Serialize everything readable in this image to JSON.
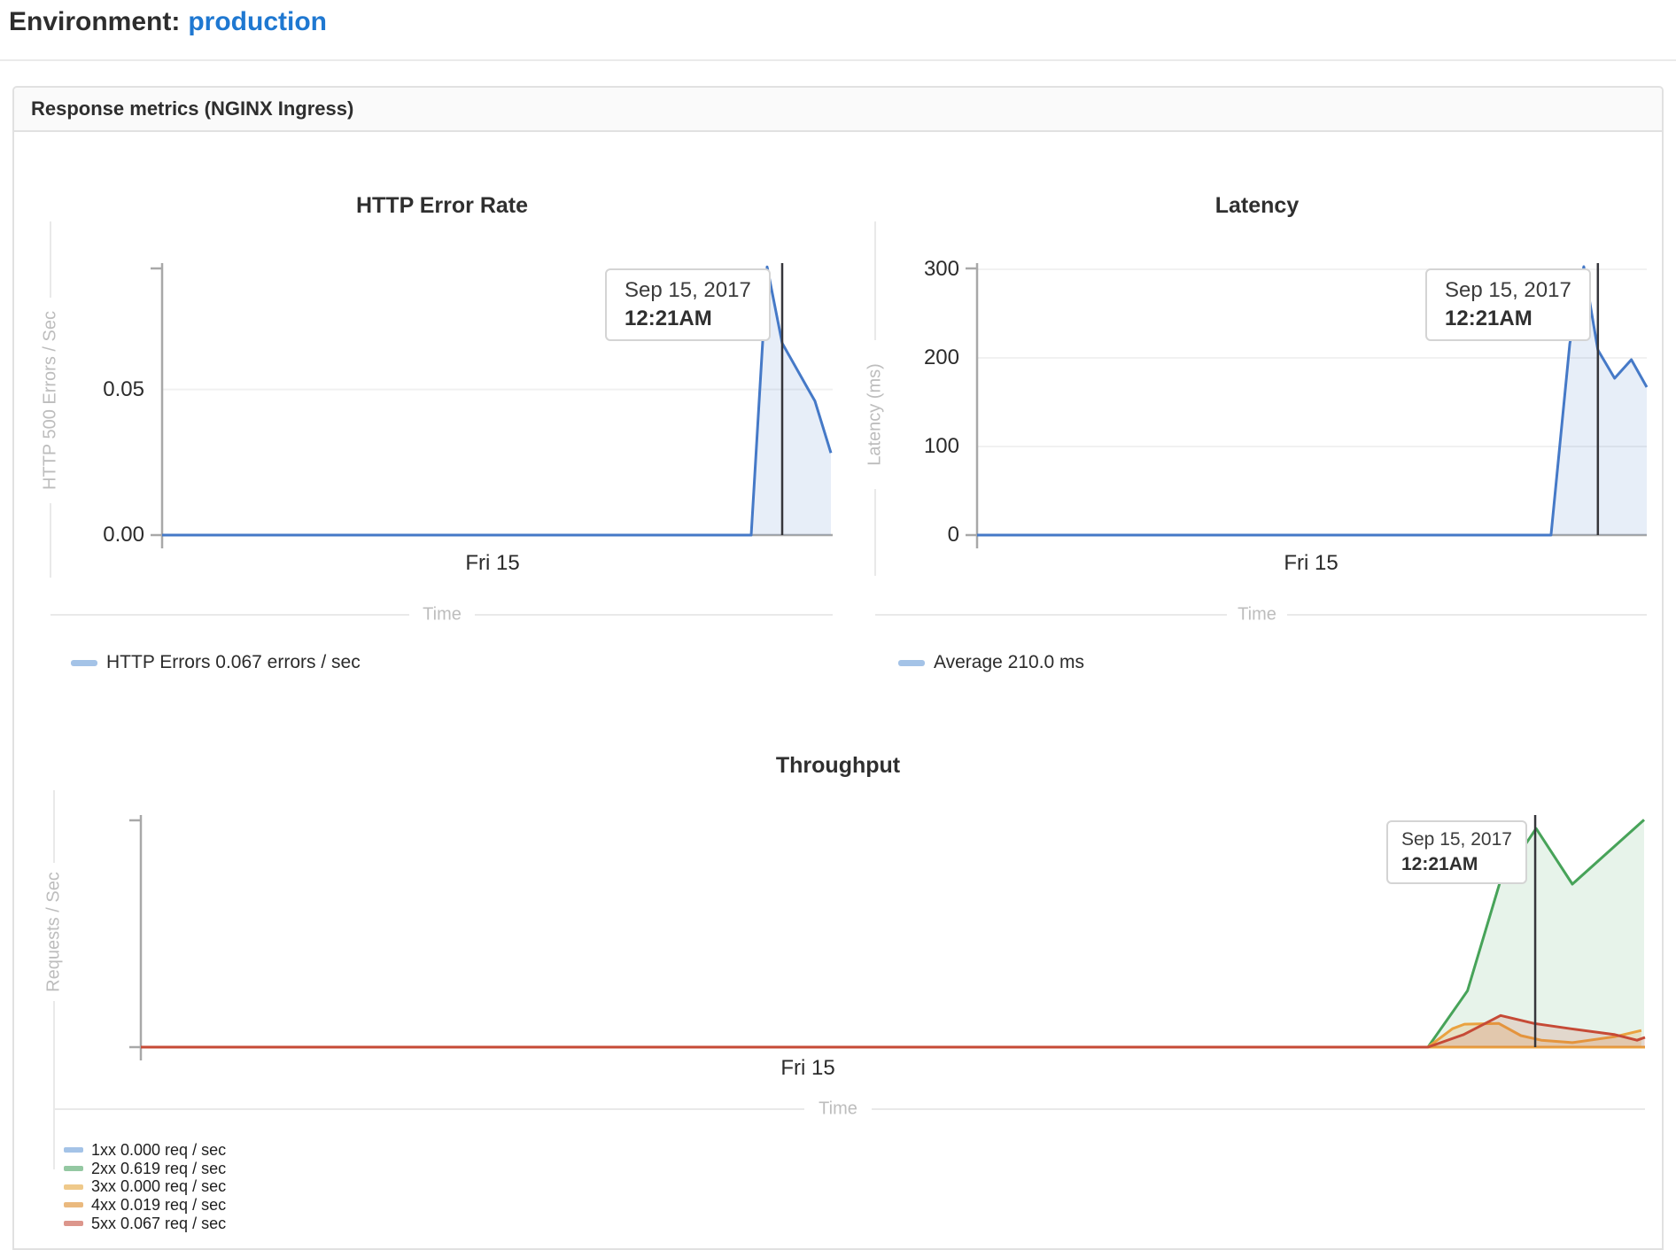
{
  "page": {
    "title_label": "Environment:",
    "environment_link": "production"
  },
  "panel": {
    "header": "Response metrics (NGINX Ingress)"
  },
  "colors": {
    "link_blue": "#1f78d1",
    "line_blue": "#4579c7",
    "line_green": "#47a359",
    "line_orange": "#eaa23f",
    "line_red": "#c64a36",
    "axis_gray": "#a8a8a8",
    "grid_gray": "#f1f1f1",
    "crosshair": "#36363b"
  },
  "chart_data": [
    {
      "id": "http-error-rate",
      "type": "area",
      "title": "HTTP Error Rate",
      "xlabel": "Time",
      "ylabel": "HTTP 500 Errors / Sec",
      "xtick_label": "Fri 15",
      "yticks": [
        {
          "label": "0.05",
          "value": 0.05
        },
        {
          "label": "0.00",
          "value": 0
        }
      ],
      "ylim": [
        0,
        0.0925
      ],
      "grid_values": [
        0.05
      ],
      "crosshair_x": 0.9247,
      "tooltip": {
        "date": "Sep 15, 2017",
        "time": "12:21AM"
      },
      "series": [
        {
          "name": "HTTP Errors",
          "color": "#4579c7",
          "fill_opacity": 0.13,
          "points": [
            [
              0,
              0
            ],
            [
              0.8785,
              0
            ],
            [
              0.9023,
              0.0921
            ],
            [
              0.9247,
              0.0659
            ],
            [
              0.963,
              0.0503
            ],
            [
              0.9736,
              0.046
            ],
            [
              0.9974,
              0.0282
            ]
          ]
        }
      ],
      "legend": [
        {
          "label": "HTTP Errors 0.067 errors / sec",
          "swatch": "#a4c3e7"
        }
      ]
    },
    {
      "id": "latency",
      "type": "area",
      "title": "Latency",
      "xlabel": "Time",
      "ylabel": "Latency (ms)",
      "xtick_label": "Fri 15",
      "yticks": [
        {
          "label": "300",
          "value": 300
        },
        {
          "label": "200",
          "value": 200
        },
        {
          "label": "100",
          "value": 100
        },
        {
          "label": "0",
          "value": 0
        }
      ],
      "ylim": [
        0,
        304
      ],
      "grid_values": [
        300,
        200,
        100
      ],
      "crosshair_x": 0.927,
      "tooltip": {
        "date": "Sep 15, 2017",
        "time": "12:21AM"
      },
      "series": [
        {
          "name": "Average",
          "color": "#4579c7",
          "fill_opacity": 0.13,
          "points": [
            [
              0,
              0
            ],
            [
              0.857,
              0
            ],
            [
              0.885,
              216
            ],
            [
              0.906,
              303
            ],
            [
              0.927,
              209
            ],
            [
              0.952,
              177
            ],
            [
              0.977,
              198
            ],
            [
              1,
              167
            ]
          ]
        }
      ],
      "legend": [
        {
          "label": "Average 210.0 ms",
          "swatch": "#a4c3e7"
        }
      ]
    },
    {
      "id": "throughput",
      "type": "area",
      "title": "Throughput",
      "xlabel": "Time",
      "ylabel": "Requests / Sec",
      "xtick_label": "Fri 15",
      "yticks": [],
      "ylim": [
        0,
        0.66
      ],
      "grid_values": [],
      "crosshair_x": 0.927,
      "tooltip": {
        "date": "Sep 15, 2017",
        "time": "12:21AM"
      },
      "series": [
        {
          "name": "1xx",
          "color": "#4579c7",
          "fill_opacity": 0,
          "points": [
            [
              0,
              0
            ],
            [
              1,
              0
            ]
          ]
        },
        {
          "name": "2xx",
          "color": "#47a359",
          "fill_opacity": 0.13,
          "points": [
            [
              0,
              0
            ],
            [
              0.8557,
              0
            ],
            [
              0.878,
              0.137
            ],
            [
              0.882,
              0.162
            ],
            [
              0.9034,
              0.472
            ],
            [
              0.9205,
              0.583
            ],
            [
              0.9276,
              0.629
            ],
            [
              0.9517,
              0.469
            ],
            [
              0.9994,
              0.654
            ]
          ]
        },
        {
          "name": "3xx",
          "color": "#eaa23f",
          "fill_opacity": 0,
          "points": [
            [
              0,
              0
            ],
            [
              1,
              0
            ]
          ]
        },
        {
          "name": "4xx",
          "color": "#eaa23f",
          "fill_opacity": 0.22,
          "points": [
            [
              0,
              0
            ],
            [
              0.8557,
              0
            ],
            [
              0.872,
              0.053
            ],
            [
              0.88,
              0.066
            ],
            [
              0.9028,
              0.068
            ],
            [
              0.9175,
              0.033
            ],
            [
              0.9311,
              0.02
            ],
            [
              0.9517,
              0.013
            ],
            [
              0.98,
              0.03
            ],
            [
              0.9976,
              0.048
            ]
          ]
        },
        {
          "name": "5xx",
          "color": "#c64a36",
          "fill_opacity": 0.16,
          "points": [
            [
              0,
              0
            ],
            [
              0.8557,
              0
            ],
            [
              0.8793,
              0.036
            ],
            [
              0.904,
              0.091
            ],
            [
              0.9264,
              0.068
            ],
            [
              0.9505,
              0.053
            ],
            [
              0.98,
              0.036
            ],
            [
              0.9947,
              0.02
            ],
            [
              1,
              0.028
            ]
          ]
        }
      ],
      "legend": [
        {
          "label": "1xx 0.000 req / sec",
          "swatch": "#a4c3e7"
        },
        {
          "label": "2xx 0.619 req / sec",
          "swatch": "#94c8a2"
        },
        {
          "label": "3xx 0.000 req / sec",
          "swatch": "#efc98a"
        },
        {
          "label": "4xx 0.019 req / sec",
          "swatch": "#eab97e"
        },
        {
          "label": "5xx 0.067 req / sec",
          "swatch": "#dc968c"
        }
      ]
    }
  ]
}
